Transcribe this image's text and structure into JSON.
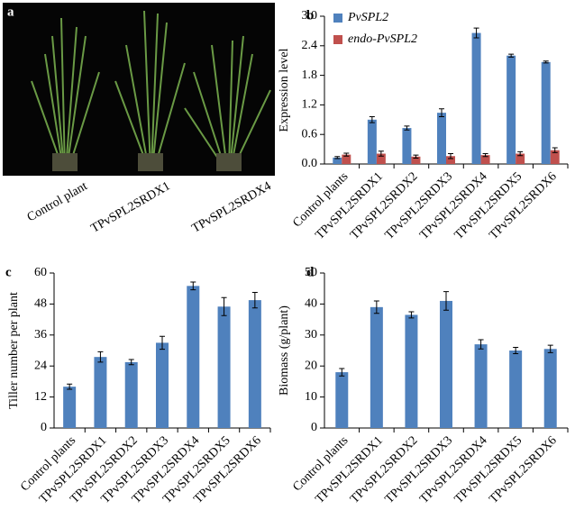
{
  "photo": {
    "panel_label": "a",
    "labels": [
      "Control plant",
      "TPvSPL2SRDX1",
      "TPvSPL2SRDX4"
    ]
  },
  "chart_data": [
    {
      "type": "bar",
      "panel_label": "b",
      "y_label": "Expression level",
      "categories": [
        "Control plants",
        "TPvSPL2SRDX1",
        "TPvSPL2SRDX2",
        "TPvSPL2SRDX3",
        "TPvSPL2SRDX4",
        "TPvSPL2SRDX5",
        "TPvSPL2SRDX6"
      ],
      "series": [
        {
          "name": "PvSPL2",
          "color": "#4f81bd",
          "values": [
            0.13,
            0.9,
            0.73,
            1.04,
            2.66,
            2.2,
            2.07
          ],
          "errors": [
            0.02,
            0.06,
            0.04,
            0.08,
            0.1,
            0.03,
            0.02
          ]
        },
        {
          "name": "endo-PvSPL2",
          "color": "#c0504d",
          "values": [
            0.19,
            0.21,
            0.15,
            0.16,
            0.18,
            0.21,
            0.28
          ],
          "errors": [
            0.03,
            0.05,
            0.03,
            0.05,
            0.03,
            0.04,
            0.05
          ]
        }
      ],
      "ylim": [
        0,
        3
      ],
      "yticks": [
        {
          "value": 0,
          "label": "0.0"
        },
        0.6,
        1.2,
        1.8,
        2.4,
        {
          "value": 3,
          "label": "3.0"
        }
      ],
      "legend": "upper left"
    },
    {
      "type": "bar",
      "panel_label": "c",
      "y_label": "Tiller number per plant",
      "categories": [
        "Control plants",
        "TPvSPL2SRDX1",
        "TPvSPL2SRDX2",
        "TPvSPL2SRDX3",
        "TPvSPL2SRDX4",
        "TPvSPL2SRDX5",
        "TPvSPL2SRDX6"
      ],
      "values": [
        16,
        27.5,
        25.5,
        33,
        55,
        47,
        49.5
      ],
      "errors": [
        1,
        2,
        1,
        2.5,
        1.5,
        3.5,
        3
      ],
      "color": "#4f81bd",
      "ylim": [
        0,
        60
      ],
      "yticks": [
        0,
        12,
        24,
        36,
        48,
        60
      ]
    },
    {
      "type": "bar",
      "panel_label": "d",
      "y_label": "Biomass (g/plant)",
      "categories": [
        "Control plants",
        "TPvSPL2SRDX1",
        "TPvSPL2SRDX2",
        "TPvSPL2SRDX3",
        "TPvSPL2SRDX4",
        "TPvSPL2SRDX5",
        "TPvSPL2SRDX6"
      ],
      "values": [
        18,
        39,
        36.5,
        41,
        27,
        25,
        25.5
      ],
      "errors": [
        1.2,
        2,
        1,
        3,
        1.5,
        1,
        1.2
      ],
      "color": "#4f81bd",
      "ylim": [
        0,
        50
      ],
      "yticks": [
        0,
        10,
        20,
        30,
        40,
        50
      ]
    }
  ]
}
